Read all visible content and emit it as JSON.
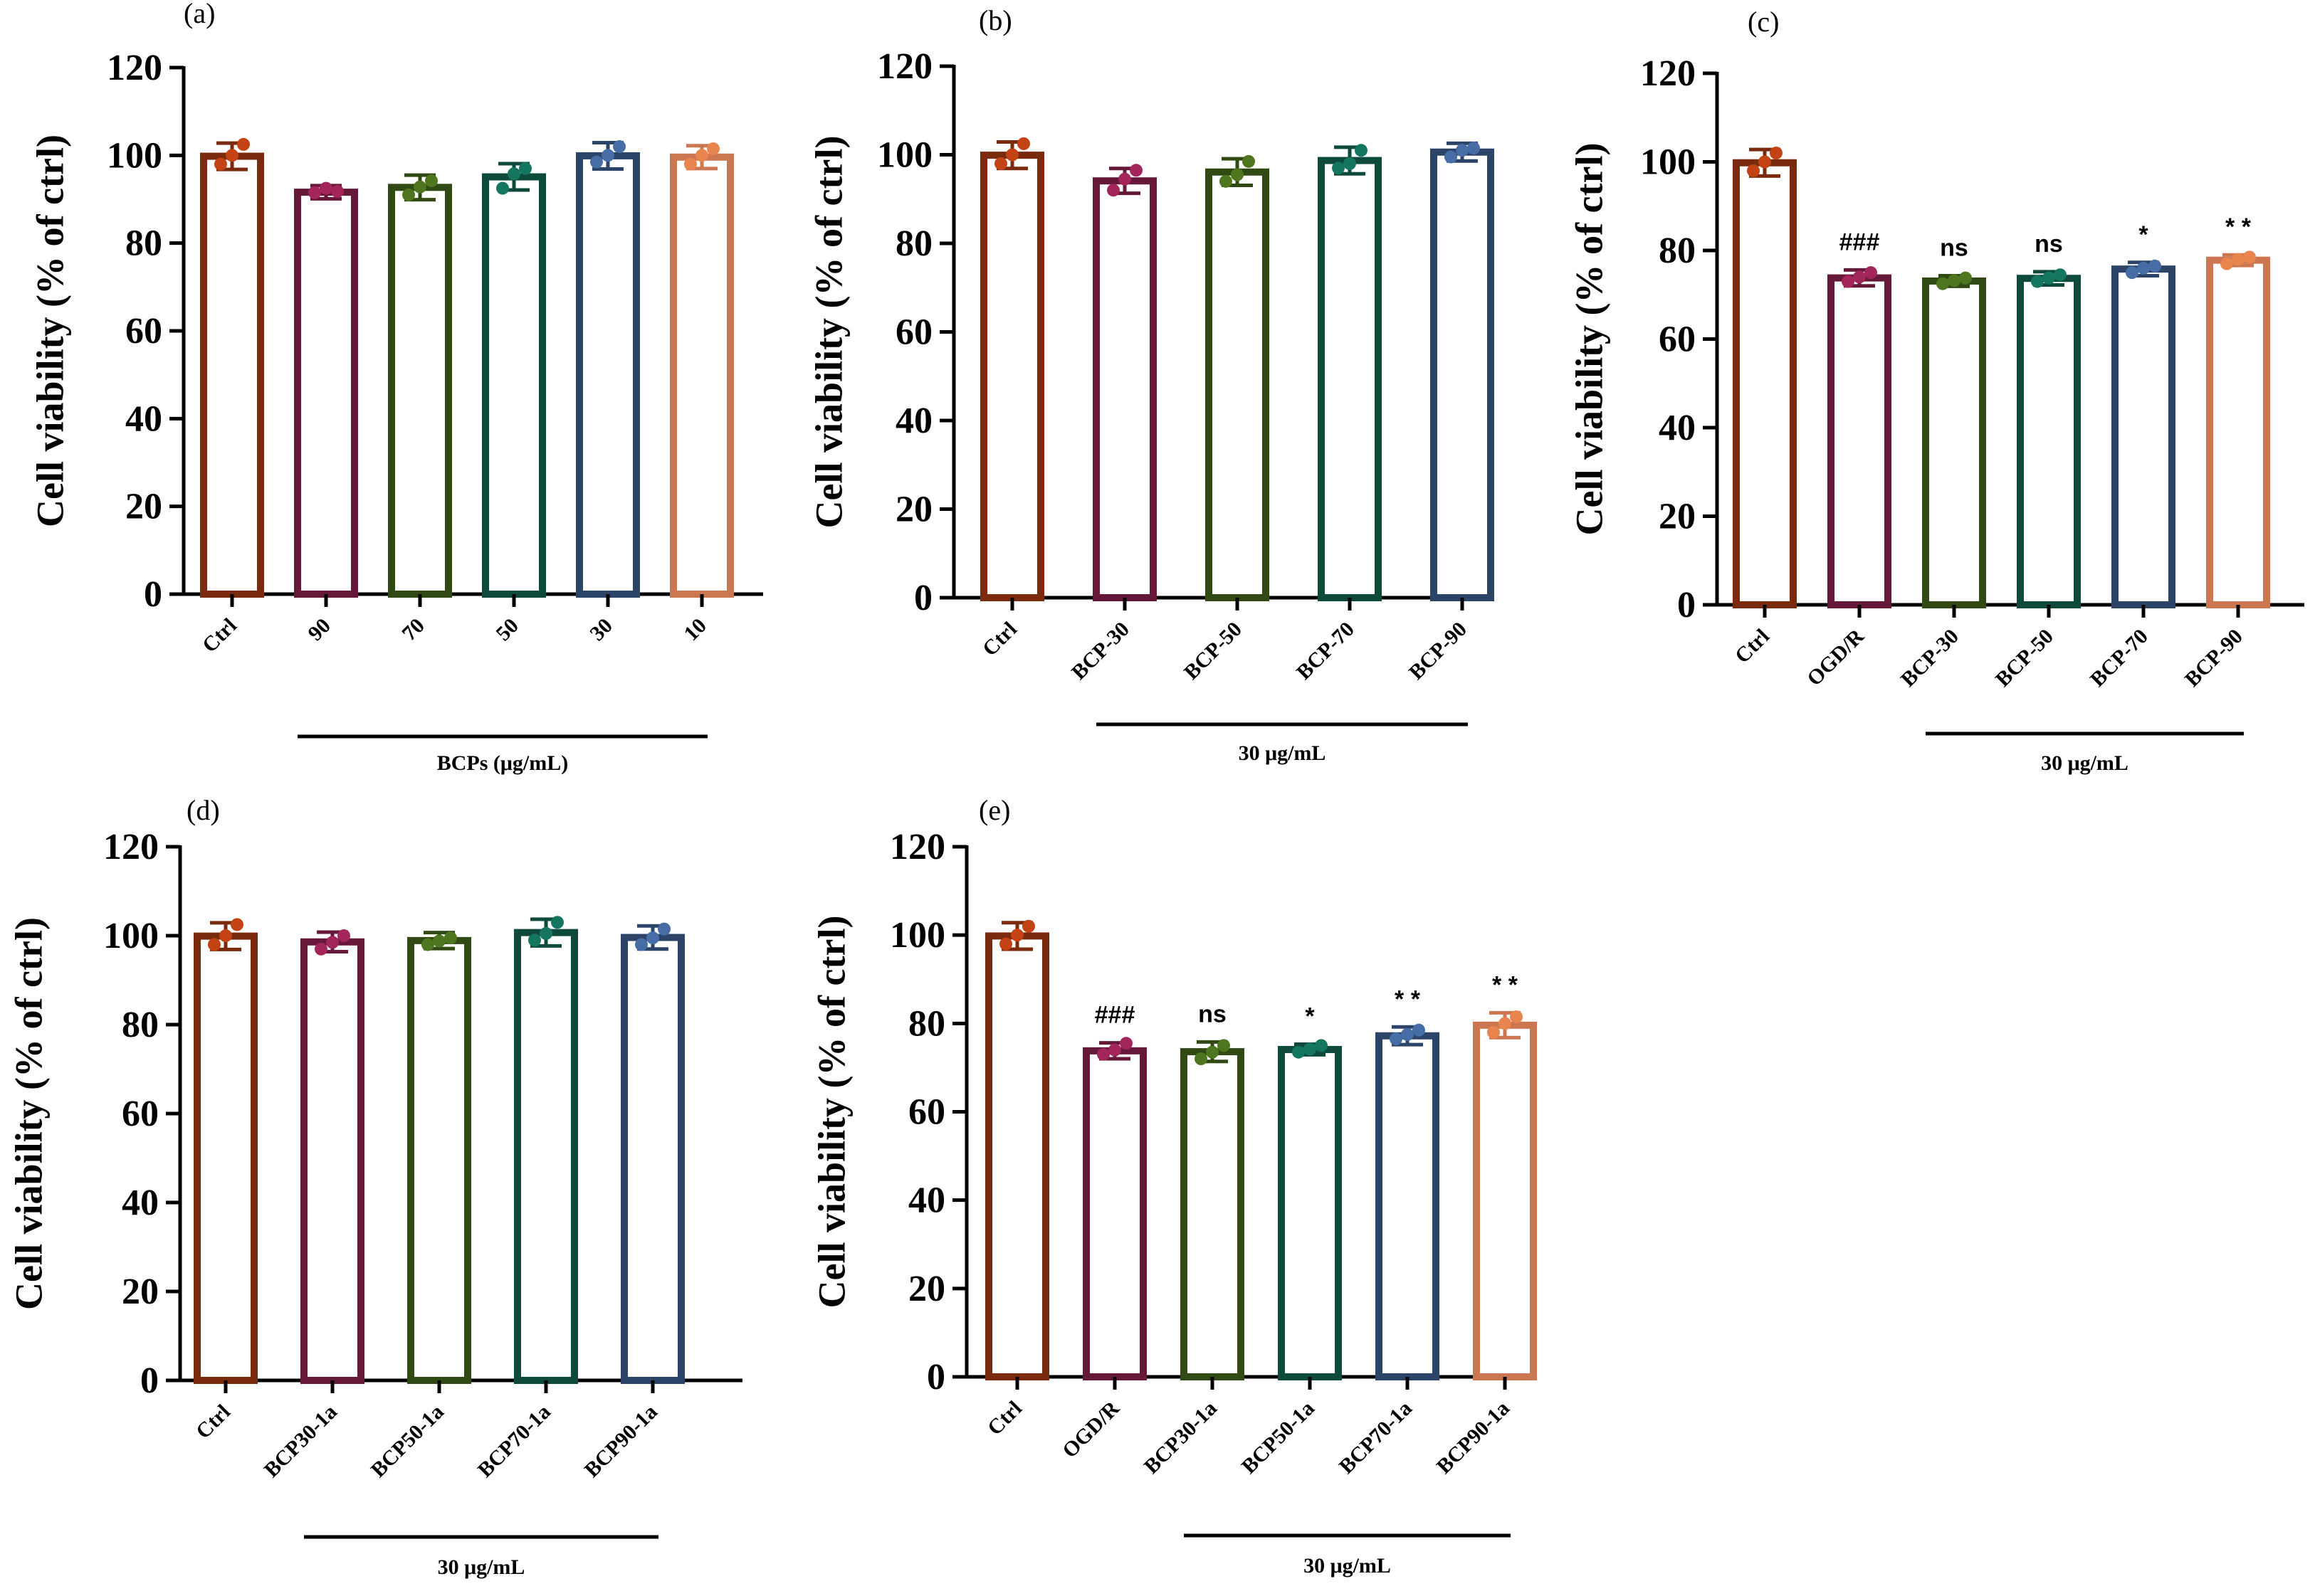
{
  "figure": {
    "background": "#ffffff",
    "axis_color": "#000000"
  },
  "colors": {
    "ctrl": "#7a2a0d",
    "maroon": "#651838",
    "green": "#314a13",
    "teal": "#0d4a3c",
    "navy": "#2c4468",
    "orange": "#cd7652"
  },
  "chart_data": [
    {
      "id": "a",
      "panel_label": "(a)",
      "type": "bar",
      "title": "",
      "xlabel": "",
      "ylabel": "Cell viability (% of ctrl)",
      "ylim": [
        0,
        120
      ],
      "yticks": [
        "0",
        "20",
        "40",
        "60",
        "80",
        "100",
        "120"
      ],
      "categories": [
        "Ctrl",
        "90",
        "70",
        "50",
        "30",
        "10"
      ],
      "values": [
        99.8,
        91.6,
        92.7,
        95.1,
        99.9,
        99.6
      ],
      "errors": [
        3.0,
        1.5,
        2.8,
        3.0,
        3.0,
        2.6
      ],
      "points": [
        [
          98,
          100,
          102.5
        ],
        [
          91.5,
          92.5,
          91.8
        ],
        [
          91,
          92.8,
          94.2
        ],
        [
          92.5,
          95.8,
          97
        ],
        [
          98.5,
          100,
          102
        ],
        [
          98,
          100,
          101.5
        ]
      ],
      "significance": [
        "",
        "",
        "",
        "",
        "",
        ""
      ],
      "bar_colors": [
        "#7a2a0d",
        "#651838",
        "#314a13",
        "#0d4a3c",
        "#2c4468",
        "#cd7652"
      ],
      "group": {
        "label": "BCPs (μg/mL)",
        "from": 1,
        "to": 5
      }
    },
    {
      "id": "b",
      "panel_label": "(b)",
      "type": "bar",
      "title": "",
      "xlabel": "",
      "ylabel": "Cell viability (% of ctrl)",
      "ylim": [
        0,
        120
      ],
      "yticks": [
        "0",
        "20",
        "40",
        "60",
        "80",
        "100",
        "120"
      ],
      "categories": [
        "Ctrl",
        "BCP-30",
        "BCP-50",
        "BCP-70",
        "BCP-90"
      ],
      "values": [
        99.9,
        94.1,
        96.1,
        98.7,
        100.6
      ],
      "errors": [
        3.0,
        2.8,
        3.0,
        3.0,
        2.0
      ],
      "points": [
        [
          98,
          100,
          102.5
        ],
        [
          92,
          94.5,
          96.5
        ],
        [
          94,
          95.5,
          98.5
        ],
        [
          97,
          98,
          101
        ],
        [
          99.5,
          101,
          101.5
        ]
      ],
      "significance": [
        "",
        "",
        "",
        "",
        ""
      ],
      "bar_colors": [
        "#7a2a0d",
        "#651838",
        "#314a13",
        "#0d4a3c",
        "#2c4468"
      ],
      "group": {
        "label": "30 μg/mL",
        "from": 1,
        "to": 4
      }
    },
    {
      "id": "c",
      "panel_label": "(c)",
      "type": "bar",
      "title": "",
      "xlabel": "",
      "ylabel": "Cell viability (% of ctrl)",
      "ylim": [
        0,
        120
      ],
      "yticks": [
        "0",
        "20",
        "40",
        "60",
        "80",
        "100",
        "120"
      ],
      "categories": [
        "Ctrl",
        "OGD/R",
        "BCP-30",
        "BCP-50",
        "BCP-70",
        "BCP-90"
      ],
      "values": [
        99.8,
        73.8,
        73.1,
        73.7,
        75.8,
        77.8
      ],
      "errors": [
        3.0,
        1.8,
        1.2,
        1.5,
        1.5,
        1.2
      ],
      "points": [
        [
          98,
          100,
          102
        ],
        [
          73,
          74,
          75
        ],
        [
          72.5,
          73.2,
          73.8
        ],
        [
          73,
          73.8,
          74.5
        ],
        [
          75,
          76,
          76.5
        ],
        [
          77,
          78,
          78.5
        ]
      ],
      "significance": [
        "",
        "###",
        "ns",
        "ns",
        "*",
        "* *"
      ],
      "bar_colors": [
        "#7a2a0d",
        "#651838",
        "#314a13",
        "#0d4a3c",
        "#2c4468",
        "#cd7652"
      ],
      "group": {
        "label": "30 μg/mL",
        "from": 2,
        "to": 5
      }
    },
    {
      "id": "d",
      "panel_label": "(d)",
      "type": "bar",
      "title": "",
      "xlabel": "",
      "ylabel": "Cell viability (% of ctrl)",
      "ylim": [
        0,
        120
      ],
      "yticks": [
        "0",
        "20",
        "40",
        "60",
        "80",
        "100",
        "120"
      ],
      "categories": [
        "Ctrl",
        "BCP30-1a",
        "BCP50-1a",
        "BCP70-1a",
        "BCP90-1a"
      ],
      "values": [
        99.9,
        98.6,
        98.9,
        100.7,
        99.6
      ],
      "errors": [
        3.0,
        2.2,
        1.8,
        3.0,
        2.6
      ],
      "points": [
        [
          98,
          100,
          102.5
        ],
        [
          97,
          98.5,
          100
        ],
        [
          98,
          98.8,
          99.5
        ],
        [
          99,
          100.5,
          103
        ],
        [
          98,
          99.5,
          101.5
        ]
      ],
      "significance": [
        "",
        "",
        "",
        "",
        ""
      ],
      "bar_colors": [
        "#7a2a0d",
        "#651838",
        "#314a13",
        "#0d4a3c",
        "#2c4468"
      ],
      "group": {
        "label": "30 μg/mL",
        "from": 1,
        "to": 4
      }
    },
    {
      "id": "e",
      "panel_label": "(e)",
      "type": "bar",
      "title": "",
      "xlabel": "",
      "ylabel": "Cell viability (% of ctrl)",
      "ylim": [
        0,
        120
      ],
      "yticks": [
        "0",
        "20",
        "40",
        "60",
        "80",
        "100",
        "120"
      ],
      "categories": [
        "Ctrl",
        "OGD/R",
        "BCP30-1a",
        "BCP50-1a",
        "BCP70-1a",
        "BCP90-1a"
      ],
      "values": [
        99.8,
        73.8,
        73.6,
        74.1,
        77.2,
        79.6
      ],
      "errors": [
        3.0,
        1.8,
        2.2,
        1.2,
        2.0,
        2.8
      ],
      "points": [
        [
          98,
          100,
          102
        ],
        [
          73,
          74,
          75.5
        ],
        [
          72,
          73.5,
          75
        ],
        [
          73.5,
          74.2,
          75
        ],
        [
          76.5,
          77.5,
          78.5
        ],
        [
          78,
          80,
          81.5
        ]
      ],
      "significance": [
        "",
        "###",
        "ns",
        "*",
        "* *",
        "* *"
      ],
      "bar_colors": [
        "#7a2a0d",
        "#651838",
        "#314a13",
        "#0d4a3c",
        "#2c4468",
        "#cd7652"
      ],
      "group": {
        "label": "30 μg/mL",
        "from": 2,
        "to": 5
      }
    }
  ]
}
